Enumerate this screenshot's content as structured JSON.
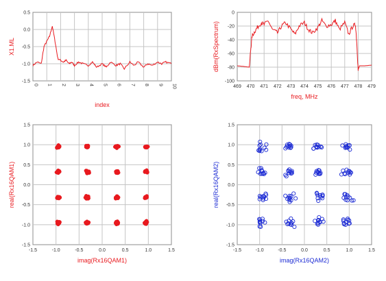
{
  "colors": {
    "red": "#e8191e",
    "blue": "#1c2bd4",
    "grid": "#c4c4c4",
    "frame": "#8c8c8c",
    "tick": "#333333"
  },
  "chart_data": [
    {
      "type": "line",
      "xlabel": "index",
      "ylabel": "X1.ML",
      "xlim": [
        0,
        10
      ],
      "ylim": [
        -1.5,
        0.5
      ],
      "xticks": [
        "0",
        "1",
        "2",
        "3",
        "4",
        "5",
        "6",
        "7",
        "8",
        "9",
        "10"
      ],
      "yticks": [
        "0.5",
        "0.0",
        "-0.5",
        "-1.0",
        "-1.5"
      ],
      "grid": true,
      "color_key": "red",
      "series": [
        {
          "x": [
            0.0,
            0.3,
            0.6,
            0.8,
            1.0,
            1.2,
            1.4,
            1.6,
            1.8,
            2.0,
            2.2,
            2.4,
            2.6,
            2.8,
            3.0,
            3.3,
            3.6,
            4.0,
            4.3,
            4.6,
            5.0,
            5.3,
            5.6,
            6.0,
            6.3,
            6.6,
            7.0,
            7.3,
            7.6,
            8.0,
            8.3,
            8.6,
            9.0,
            9.3,
            9.6,
            10.0
          ],
          "y": [
            -1.05,
            -0.95,
            -1.0,
            -0.5,
            -0.35,
            -0.2,
            0.1,
            -0.35,
            -0.85,
            -0.9,
            -0.95,
            -0.9,
            -1.0,
            -0.95,
            -1.05,
            -0.95,
            -1.0,
            -1.05,
            -0.95,
            -1.1,
            -1.0,
            -1.1,
            -0.95,
            -1.05,
            -1.0,
            -1.15,
            -0.95,
            -1.05,
            -0.95,
            -1.1,
            -1.0,
            -1.05,
            -0.95,
            -1.0,
            -0.95,
            -1.0
          ]
        }
      ]
    },
    {
      "type": "line",
      "xlabel": "freq, MHz",
      "ylabel": "dBm(RxSpectrum)",
      "xlim": [
        469,
        479
      ],
      "ylim": [
        -100,
        0
      ],
      "xticks": [
        "469",
        "470",
        "471",
        "472",
        "473",
        "474",
        "475",
        "476",
        "477",
        "478",
        "479"
      ],
      "yticks": [
        "0",
        "-20",
        "-40",
        "-60",
        "-80",
        "-100"
      ],
      "grid": true,
      "color_key": "red",
      "series": [
        {
          "x": [
            469.0,
            469.5,
            469.9,
            470.0,
            470.1,
            470.3,
            470.5,
            470.8,
            471.0,
            471.3,
            471.6,
            472.0,
            472.3,
            472.6,
            473.0,
            473.3,
            473.6,
            474.0,
            474.3,
            474.6,
            475.0,
            475.3,
            475.6,
            476.0,
            476.3,
            476.6,
            477.0,
            477.3,
            477.6,
            477.8,
            477.9,
            478.0,
            478.1,
            478.5,
            479.0
          ],
          "y": [
            -78,
            -79,
            -80,
            -55,
            -35,
            -28,
            -22,
            -15,
            -18,
            -12,
            -25,
            -30,
            -20,
            -15,
            -25,
            -32,
            -20,
            -15,
            -25,
            -30,
            -22,
            -12,
            -20,
            -18,
            -12,
            -25,
            -15,
            -32,
            -20,
            -18,
            -45,
            -85,
            -78,
            -78,
            -77
          ]
        }
      ]
    },
    {
      "type": "scatter",
      "xlabel": "imag(Rx16QAM1)",
      "ylabel": "real(Rx16QAM1)",
      "xlim": [
        -1.5,
        1.5
      ],
      "ylim": [
        -1.5,
        1.5
      ],
      "xticks": [
        "-1.5",
        "-1.0",
        "-0.5",
        "0.0",
        "0.5",
        "1.0",
        "1.5"
      ],
      "yticks": [
        "1.5",
        "1.0",
        "0.5",
        "0.0",
        "-0.5",
        "-1.0",
        "-1.5"
      ],
      "grid": true,
      "color_key": "red",
      "marker": "filled",
      "levels": [
        -0.95,
        -0.32,
        0.32,
        0.95
      ],
      "spread": 0.05
    },
    {
      "type": "scatter",
      "xlabel": "imag(Rx16QAM2)",
      "ylabel": "real(Rx16QAM2)",
      "xlim": [
        -1.5,
        1.5
      ],
      "ylim": [
        -1.5,
        1.5
      ],
      "xticks": [
        "-1.5",
        "-1.0",
        "-0.5",
        "0.0",
        "0.5",
        "1.0",
        "1.5"
      ],
      "yticks": [
        "1.5",
        "1.0",
        "0.5",
        "0.0",
        "-0.5",
        "-1.0",
        "-1.5"
      ],
      "grid": true,
      "color_key": "blue",
      "marker": "hollow",
      "levels": [
        -0.95,
        -0.32,
        0.32,
        0.95
      ],
      "spread": 0.16
    }
  ]
}
